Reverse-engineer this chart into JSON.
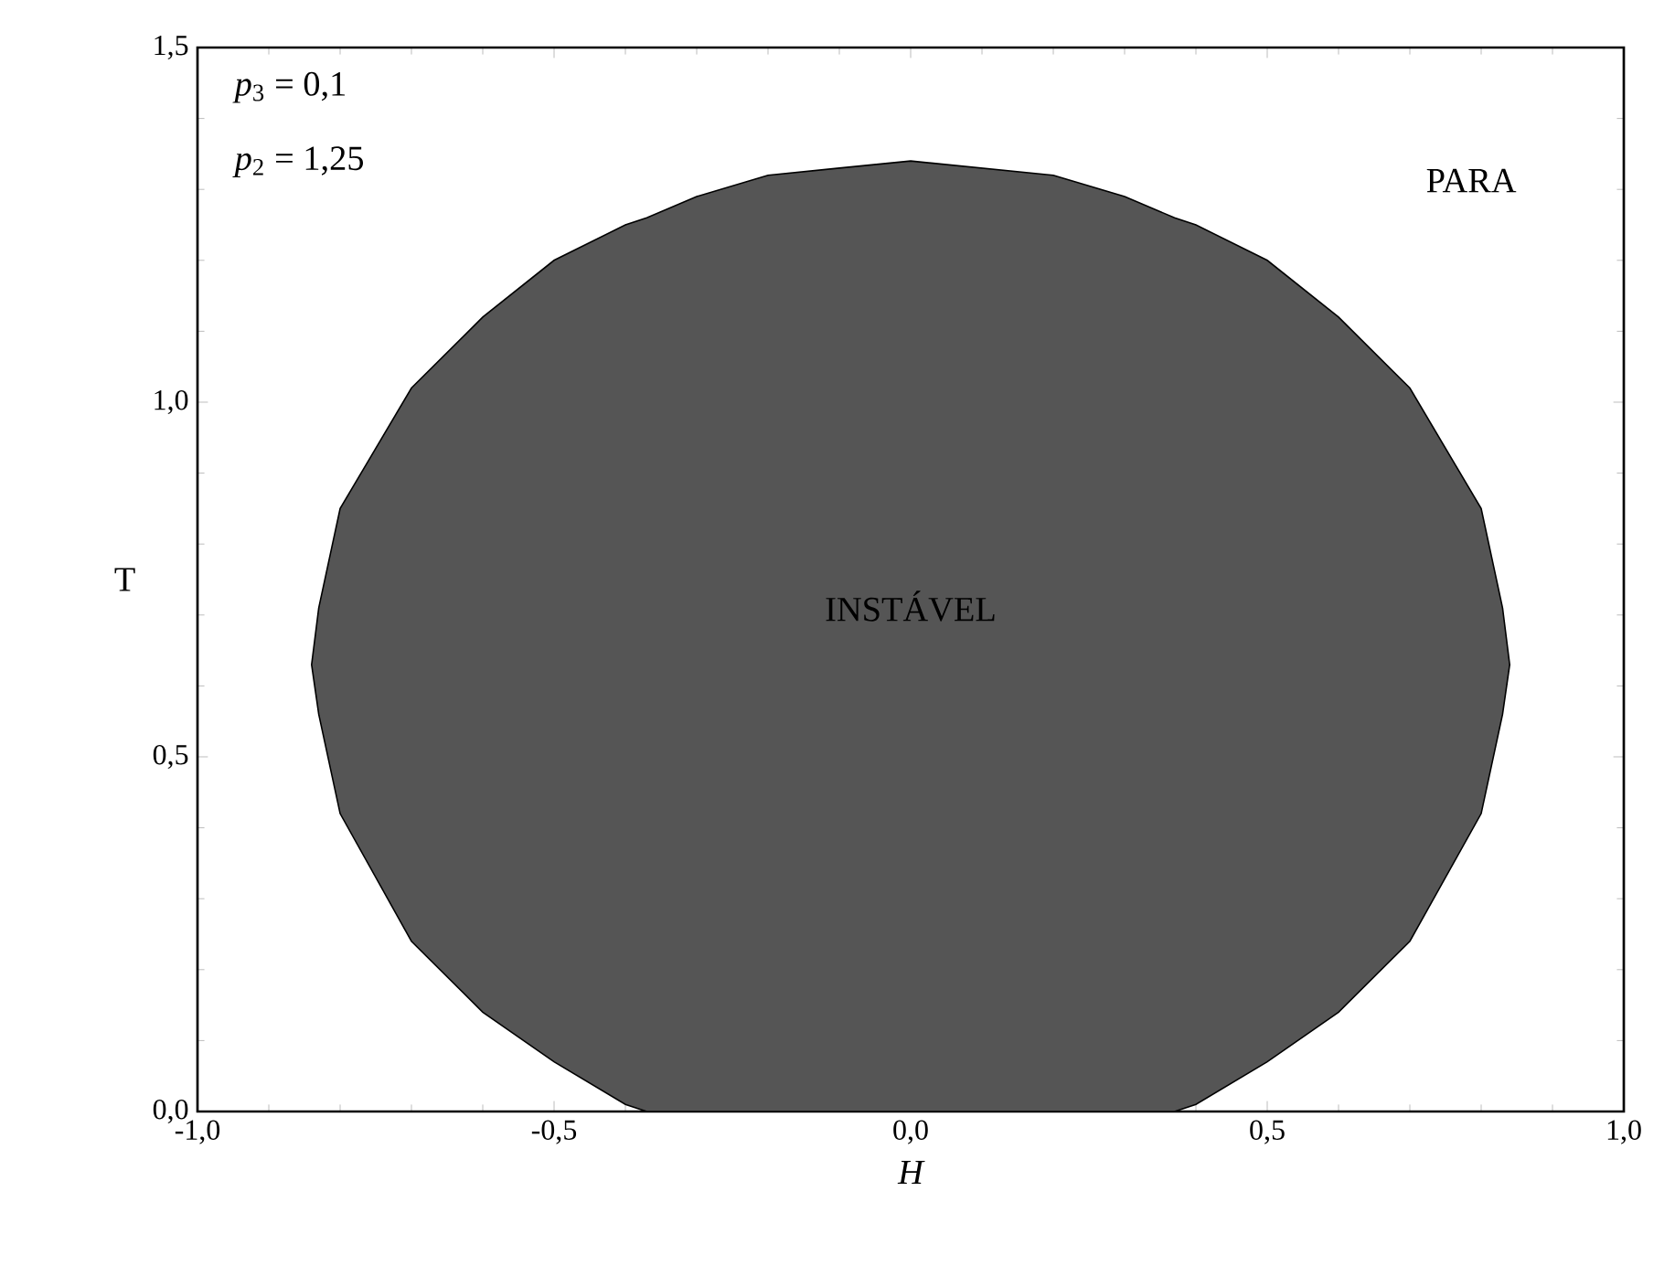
{
  "chart_data": {
    "type": "area",
    "xlabel": "H",
    "ylabel": "T",
    "xlim": [
      -1,
      1
    ],
    "ylim": [
      0,
      1.5
    ],
    "xticks": [
      {
        "value": -1,
        "label": "-1,0"
      },
      {
        "value": -0.5,
        "label": "-0,5"
      },
      {
        "value": 0,
        "label": "0,0"
      },
      {
        "value": 0.5,
        "label": "0,5"
      },
      {
        "value": 1,
        "label": "1,0"
      }
    ],
    "yticks": [
      {
        "value": 0,
        "label": "0,0"
      },
      {
        "value": 0.5,
        "label": "0,5"
      },
      {
        "value": 1,
        "label": "1,0"
      },
      {
        "value": 1.5,
        "label": "1,5"
      }
    ],
    "grid": false,
    "series": [
      {
        "color": "#555555",
        "x": [
          -0.84,
          -0.83,
          -0.8,
          -0.7,
          -0.6,
          -0.5,
          -0.4,
          -0.37,
          -0.3,
          -0.2,
          -0.1,
          0,
          0.1,
          0.2,
          0.3,
          0.37,
          0.4,
          0.5,
          0.6,
          0.7,
          0.8,
          0.83,
          0.84,
          0.83,
          0.8,
          0.7,
          0.6,
          0.5,
          0.4,
          0.37,
          -0.37,
          -0.4,
          -0.5,
          -0.6,
          -0.7,
          -0.8,
          -0.83
        ],
        "values": [
          0.63,
          0.71,
          0.85,
          1.02,
          1.12,
          1.2,
          1.25,
          1.26,
          1.29,
          1.32,
          1.33,
          1.34,
          1.33,
          1.32,
          1.29,
          1.26,
          1.25,
          1.2,
          1.12,
          1.02,
          0.85,
          0.71,
          0.63,
          0.56,
          0.42,
          0.24,
          0.14,
          0.07,
          0.01,
          0,
          0,
          0.01,
          0.07,
          0.14,
          0.24,
          0.42,
          0.56
        ]
      }
    ],
    "annotations": [
      "*p*$_{3}$ = 0,1",
      "*p*$_{2}$ = 1,25",
      "INSTÁVEL",
      "PARA"
    ]
  }
}
